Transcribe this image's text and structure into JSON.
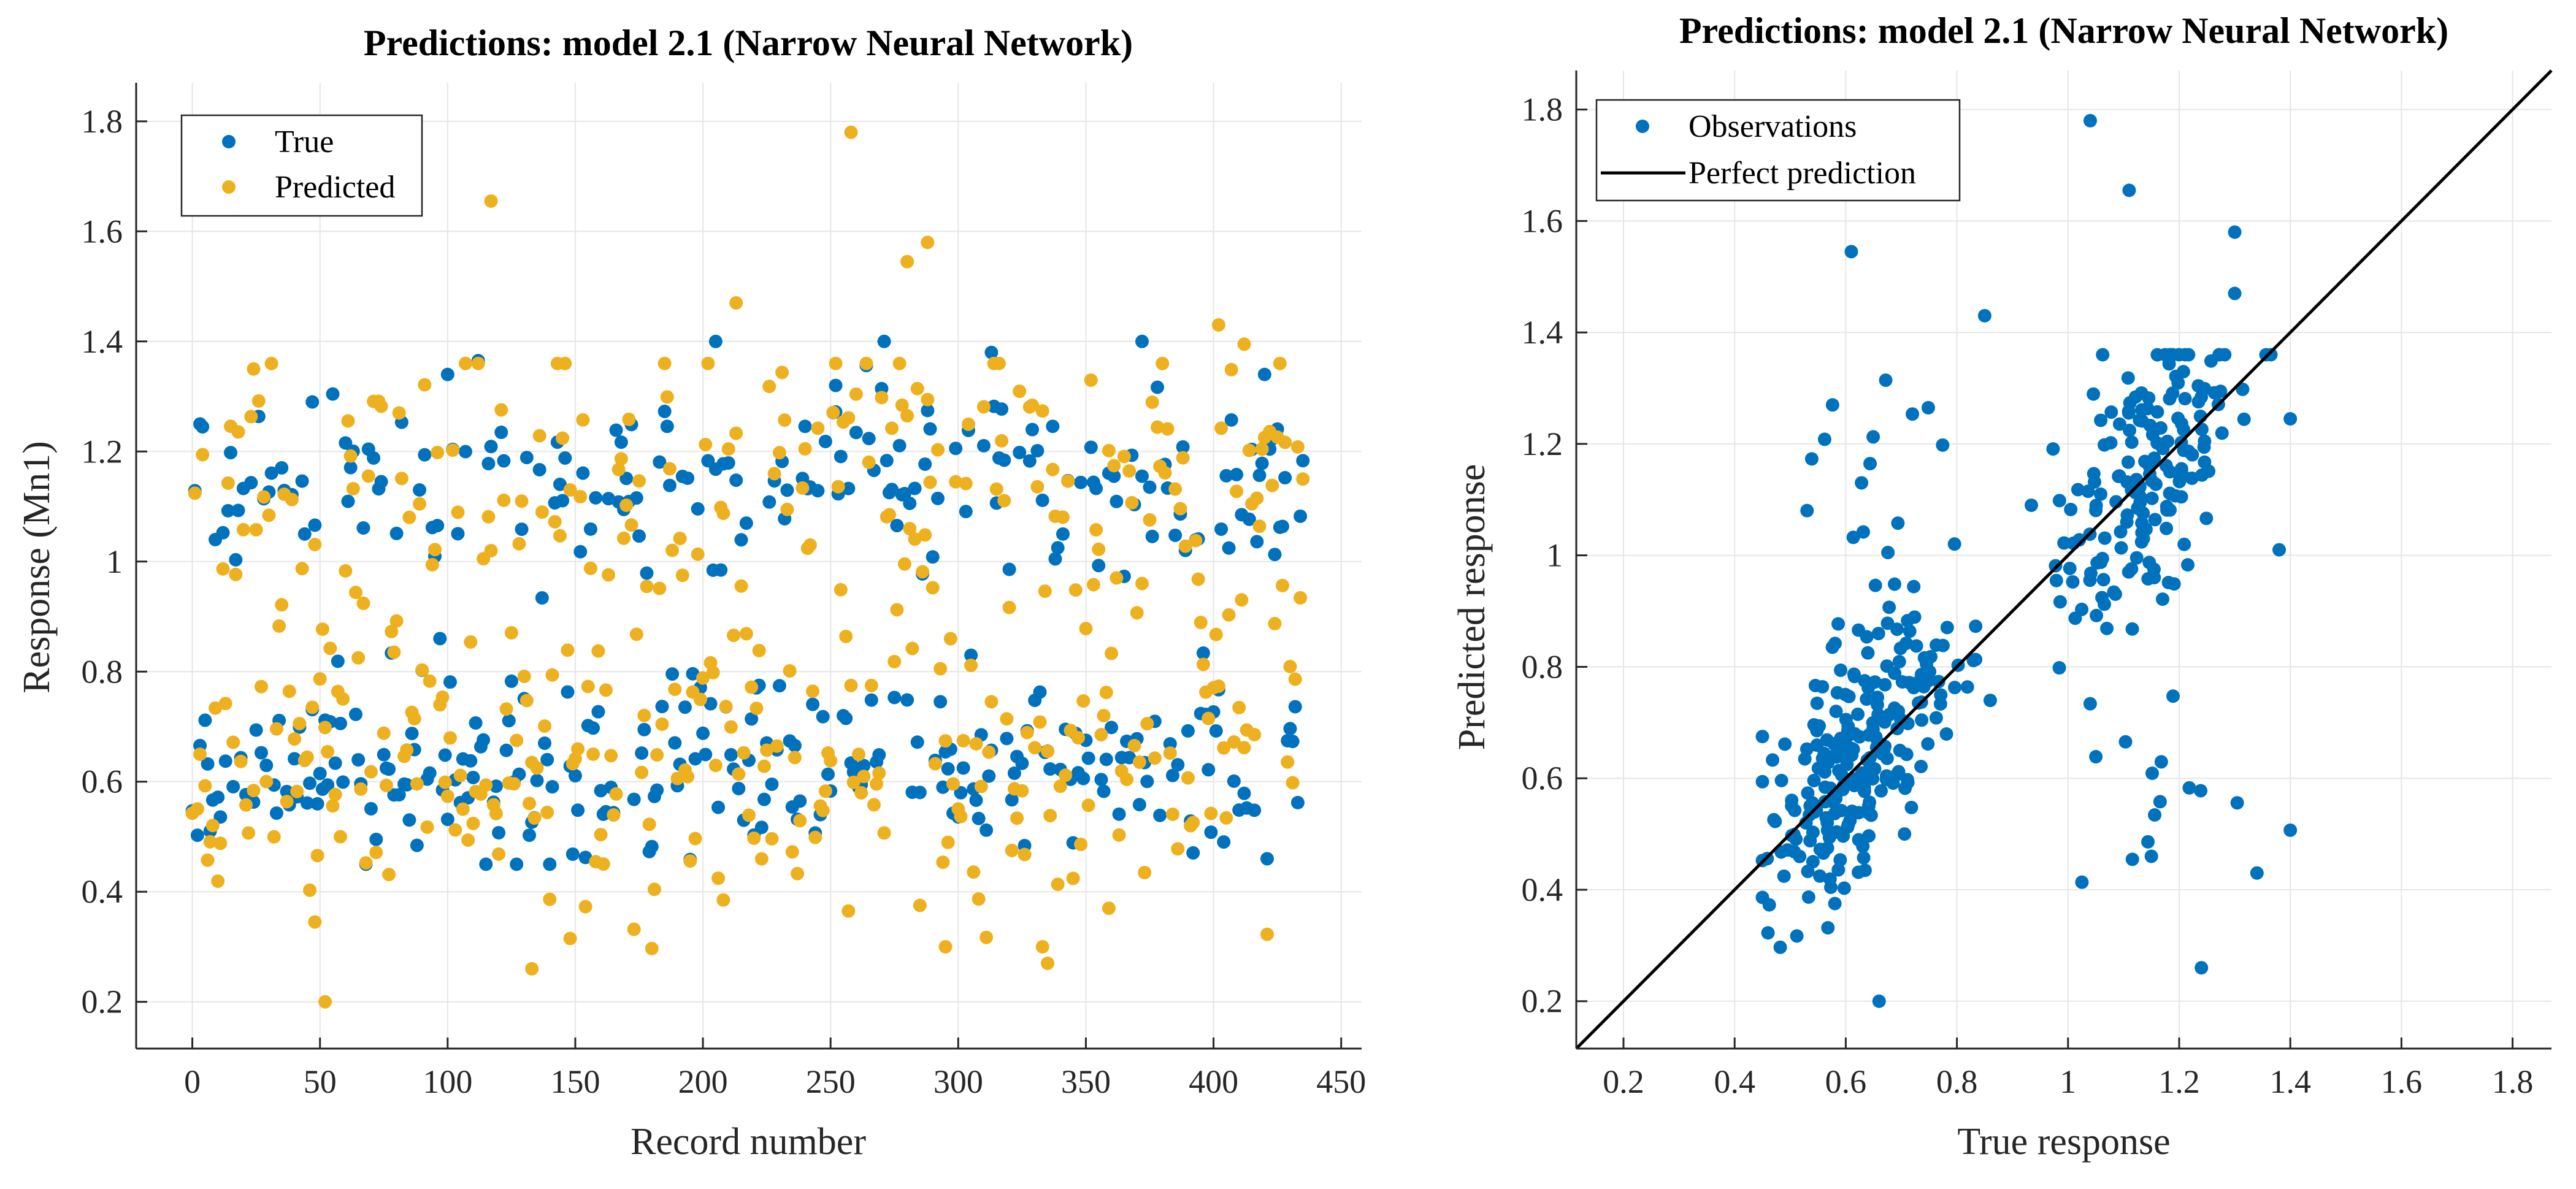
{
  "colors": {
    "true": "#0072BD",
    "predicted": "#EDB120",
    "line": "#000000"
  },
  "chart_data": [
    {
      "type": "scatter",
      "title": "Predictions: model 2.1 (Narrow Neural Network)",
      "xlabel": "Record number",
      "ylabel": "Response (Mn1)",
      "xlim": [
        -22,
        458
      ],
      "ylim": [
        0.115,
        1.87
      ],
      "xticks": [
        0,
        50,
        100,
        150,
        200,
        250,
        300,
        350,
        400,
        450
      ],
      "yticks": [
        0.2,
        0.4,
        0.6,
        0.8,
        1,
        1.2,
        1.4,
        1.6,
        1.8
      ],
      "xtick_labels": [
        "0",
        "50",
        "100",
        "150",
        "200",
        "250",
        "300",
        "350",
        "400",
        "450"
      ],
      "ytick_labels": [
        "0.2",
        "0.4",
        "0.6",
        "0.8",
        "1",
        "1.2",
        "1.4",
        "1.6",
        "1.8"
      ],
      "grid": true,
      "legend": {
        "position": "top-left",
        "entries": [
          "True",
          "Predicted"
        ]
      },
      "n_records": 436,
      "highlighted_predicted": [
        {
          "x": 258,
          "y": 1.78
        },
        {
          "x": 117,
          "y": 1.655
        },
        {
          "x": 288,
          "y": 1.58
        },
        {
          "x": 280,
          "y": 1.545
        },
        {
          "x": 213,
          "y": 1.47
        },
        {
          "x": 402,
          "y": 1.43
        },
        {
          "x": 412,
          "y": 1.395
        },
        {
          "x": 24,
          "y": 1.35
        },
        {
          "x": 52,
          "y": 0.2
        },
        {
          "x": 133,
          "y": 0.26
        },
        {
          "x": 335,
          "y": 0.27
        },
        {
          "x": 48,
          "y": 0.345
        },
        {
          "x": 148,
          "y": 0.315
        },
        {
          "x": 295,
          "y": 0.3
        },
        {
          "x": 333,
          "y": 0.3
        },
        {
          "x": 208,
          "y": 0.385
        },
        {
          "x": 257,
          "y": 0.365
        },
        {
          "x": 359,
          "y": 0.37
        }
      ],
      "highlighted_true": [
        {
          "x": 205,
          "y": 1.4
        },
        {
          "x": 372,
          "y": 1.4
        },
        {
          "x": 100,
          "y": 1.34
        },
        {
          "x": 313,
          "y": 1.38
        },
        {
          "x": 420,
          "y": 1.34
        },
        {
          "x": 252,
          "y": 1.32
        },
        {
          "x": 3,
          "y": 1.25
        },
        {
          "x": 47,
          "y": 1.29
        }
      ]
    },
    {
      "type": "scatter",
      "title": "Predictions: model 2.1 (Narrow Neural Network)",
      "xlabel": "True response",
      "ylabel": "Predicted response",
      "xlim": [
        0.115,
        1.87
      ],
      "ylim": [
        0.115,
        1.87
      ],
      "xticks": [
        0.2,
        0.4,
        0.6,
        0.8,
        1,
        1.2,
        1.4,
        1.6,
        1.8
      ],
      "yticks": [
        0.2,
        0.4,
        0.6,
        0.8,
        1,
        1.2,
        1.4,
        1.6,
        1.8
      ],
      "xtick_labels": [
        "0.2",
        "0.4",
        "0.6",
        "0.8",
        "1",
        "1.2",
        "1.4",
        "1.6",
        "1.8"
      ],
      "ytick_labels": [
        "0.2",
        "0.4",
        "0.6",
        "0.8",
        "1",
        "1.2",
        "1.4",
        "1.6",
        "1.8"
      ],
      "grid": true,
      "legend": {
        "position": "top-left",
        "entries": [
          "Observations",
          "Perfect prediction"
        ]
      },
      "reference_line": {
        "x": [
          0.115,
          1.87
        ],
        "y": [
          0.115,
          1.87
        ]
      },
      "highlighted_points": [
        {
          "x": 1.04,
          "y": 1.78
        },
        {
          "x": 1.11,
          "y": 1.655
        },
        {
          "x": 1.3,
          "y": 1.58
        },
        {
          "x": 0.61,
          "y": 1.545
        },
        {
          "x": 1.3,
          "y": 1.47
        },
        {
          "x": 0.85,
          "y": 1.43
        },
        {
          "x": 0.66,
          "y": 0.2
        },
        {
          "x": 1.24,
          "y": 0.26
        },
        {
          "x": 1.34,
          "y": 0.43
        },
        {
          "x": 1.15,
          "y": 0.46
        },
        {
          "x": 1.4,
          "y": 1.245
        },
        {
          "x": 1.38,
          "y": 1.01
        }
      ]
    }
  ]
}
